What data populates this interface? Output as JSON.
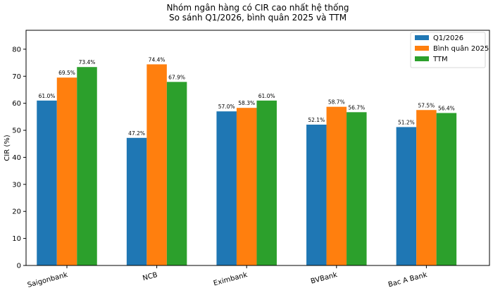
{
  "chart_data": {
    "type": "bar",
    "title": "Nhóm ngân hàng có CIR cao nhất hệ thống",
    "subtitle": "So sánh Q1/2026, bình quân 2025 và TTM",
    "xlabel": "",
    "ylabel": "CIR (%)",
    "ylim": [
      0,
      87
    ],
    "yticks": [
      0,
      10,
      20,
      30,
      40,
      50,
      60,
      70,
      80
    ],
    "grid": false,
    "legend_position": "top-right",
    "categories": [
      "Saigonbank",
      "NCB",
      "Eximbank",
      "BVBank",
      "Bac A Bank"
    ],
    "series": [
      {
        "name": "Q1/2026",
        "color": "#1f77b4",
        "values": [
          61.0,
          47.2,
          57.0,
          52.1,
          51.2
        ],
        "labels": [
          "61.0%",
          "47.2%",
          "57.0%",
          "52.1%",
          "51.2%"
        ]
      },
      {
        "name": "Bình quân 2025",
        "color": "#ff7f0e",
        "values": [
          69.5,
          74.4,
          58.3,
          58.7,
          57.5
        ],
        "labels": [
          "69.5%",
          "74.4%",
          "58.3%",
          "58.7%",
          "57.5%"
        ]
      },
      {
        "name": "TTM",
        "color": "#2ca02c",
        "values": [
          73.4,
          67.9,
          61.0,
          56.7,
          56.4
        ],
        "labels": [
          "73.4%",
          "67.9%",
          "61.0%",
          "56.7%",
          "56.4%"
        ]
      }
    ]
  }
}
